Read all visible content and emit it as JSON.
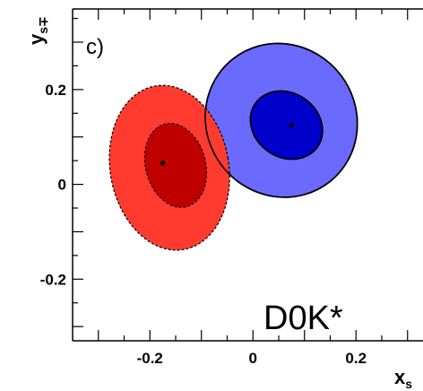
{
  "chart_data": {
    "type": "contour",
    "panel_label": "c)",
    "annotation": "D0K*",
    "xlabel": "x",
    "xlabel_sub": "s",
    "ylabel": "y",
    "ylabel_sub": "s∓",
    "xlim": [
      -0.35,
      0.33
    ],
    "ylim": [
      -0.33,
      0.37
    ],
    "x_ticks": [
      -0.2,
      0,
      0.2
    ],
    "x_tick_labels": [
      "-0.2",
      "0",
      "0.2"
    ],
    "y_ticks": [
      -0.2,
      0,
      0.2
    ],
    "y_tick_labels": [
      "-0.2",
      "0",
      "0.2"
    ],
    "grid": false,
    "series": [
      {
        "fill_color": "#ff3b30",
        "inner_color": "#c00000",
        "line_style": "dashed",
        "center": [
          -0.175,
          0.045
        ],
        "contours": [
          {
            "level": "outer",
            "rx": 0.115,
            "ry": 0.175,
            "cx": -0.162,
            "cy": 0.035,
            "angle_deg": -10
          },
          {
            "level": "inner",
            "rx": 0.058,
            "ry": 0.09,
            "cx": -0.15,
            "cy": 0.04,
            "angle_deg": -15
          }
        ]
      },
      {
        "fill_color": "#6a6aff",
        "inner_color": "#0000cc",
        "line_style": "solid",
        "center": [
          0.075,
          0.125
        ],
        "contours": [
          {
            "level": "outer",
            "rx": 0.145,
            "ry": 0.165,
            "cx": 0.055,
            "cy": 0.135,
            "angle_deg": -38
          },
          {
            "level": "inner",
            "rx": 0.062,
            "ry": 0.08,
            "cx": 0.065,
            "cy": 0.125,
            "angle_deg": -55
          }
        ]
      }
    ]
  }
}
